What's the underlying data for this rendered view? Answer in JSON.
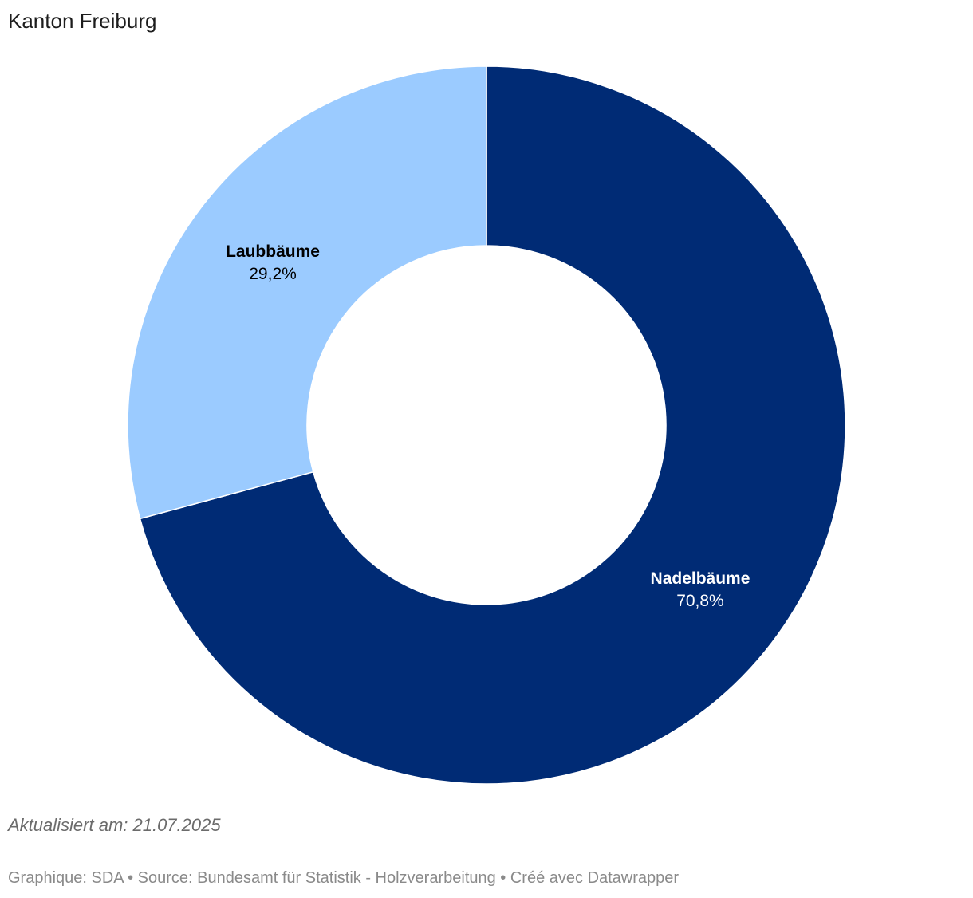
{
  "header": {
    "title": "Kanton Freiburg"
  },
  "chart_data": {
    "type": "pie",
    "donut": true,
    "title": "Kanton Freiburg",
    "slices": [
      {
        "name": "Nadelbäume",
        "value": 70.8,
        "label": "70,8%",
        "color": "#002b75",
        "label_color": "#ffffff"
      },
      {
        "name": "Laubbäume",
        "value": 29.2,
        "label": "29,2%",
        "color": "#9bcbff",
        "label_color": "#000000"
      }
    ],
    "legend": "none"
  },
  "footer": {
    "updated": "Aktualisiert am: 21.07.2025",
    "source": "Graphique: SDA • Source: Bundesamt für Statistik - Holzverarbeitung • Créé avec Datawrapper"
  }
}
